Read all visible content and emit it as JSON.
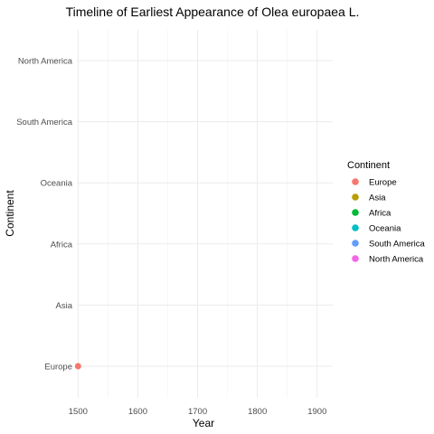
{
  "chart_data": {
    "type": "scatter",
    "title": "Timeline of Earliest Appearance of Olea europaea L.",
    "xlabel": "Year",
    "ylabel": "Continent",
    "xlim": [
      1498,
      1926
    ],
    "x_ticks": [
      1500,
      1600,
      1700,
      1800,
      1900
    ],
    "x_tick_labels": [
      "1500",
      "1600",
      "1700",
      "1800",
      "1900"
    ],
    "categories": [
      "Europe",
      "Asia",
      "Africa",
      "Oceania",
      "South America",
      "North America"
    ],
    "grid": true,
    "legend": {
      "title": "Continent",
      "position": "right",
      "entries": [
        {
          "label": "Europe",
          "color": "#F8766D"
        },
        {
          "label": "Asia",
          "color": "#B79F00"
        },
        {
          "label": "Africa",
          "color": "#00BA38"
        },
        {
          "label": "Oceania",
          "color": "#00BFC4"
        },
        {
          "label": "South America",
          "color": "#619CFF"
        },
        {
          "label": "North America",
          "color": "#F564E3"
        }
      ]
    },
    "points": [
      {
        "x": 1500,
        "y": "Europe",
        "color": "#F8766D"
      }
    ]
  }
}
